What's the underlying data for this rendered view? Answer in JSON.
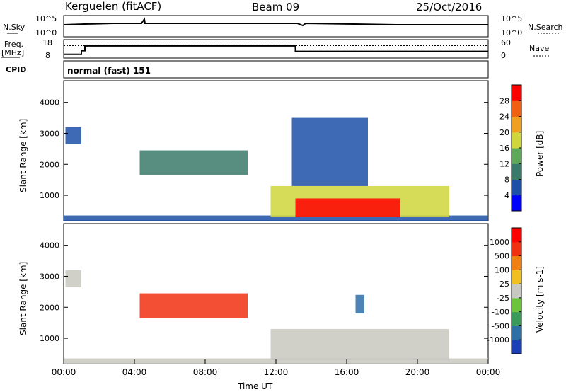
{
  "header": {
    "station": "Kerguelen (fitACF)",
    "beam": "Beam 09",
    "date": "25/Oct/2016"
  },
  "noise_panel": {
    "left_label": "N.Sky",
    "right_label": "N.Search",
    "left_ticks": [
      "10^5",
      "10^0"
    ],
    "right_ticks": [
      "10^5",
      "10^0"
    ]
  },
  "freq_panel": {
    "left_label_1": "Freq.",
    "left_label_2": "[MHz]",
    "right_label": "Nave",
    "left_ticks": [
      "18",
      "8"
    ],
    "right_ticks": [
      "60",
      "0"
    ],
    "freq_series": [
      {
        "t": 0.0,
        "mhz": 10.0
      },
      {
        "t": 1.0,
        "mhz": 10.0
      },
      {
        "t": 1.0,
        "mhz": 12.0
      },
      {
        "t": 1.2,
        "mhz": 12.0
      },
      {
        "t": 1.2,
        "mhz": 14.6
      },
      {
        "t": 13.1,
        "mhz": 14.6
      },
      {
        "t": 13.1,
        "mhz": 11.6
      },
      {
        "t": 24.0,
        "mhz": 11.6
      }
    ],
    "nave_level": 0.68
  },
  "cpid_panel": {
    "label": "CPID",
    "mode": "normal (fast) 151"
  },
  "chart_data": [
    {
      "type": "heatmap",
      "name": "power",
      "ylabel": "Slant Range [km]",
      "xlabel": "Time UT",
      "xlim": [
        0,
        24
      ],
      "ylim": [
        180,
        4700
      ],
      "yticks": [
        "1000",
        "2000",
        "3000",
        "4000"
      ],
      "colorbar": {
        "label": "Power [dB]",
        "ticks": [
          "4",
          "8",
          "12",
          "16",
          "20",
          "24",
          "28"
        ],
        "colors": [
          "#0000ff",
          "#1c4fa8",
          "#3a7a6a",
          "#5fa85a",
          "#cfd63a",
          "#f0a020",
          "#f06010",
          "#ff0000"
        ]
      },
      "regions": [
        {
          "t0": 0.1,
          "t1": 1.0,
          "r0": 2650,
          "r1": 3200,
          "level": 1
        },
        {
          "t0": 4.3,
          "t1": 10.4,
          "r0": 1650,
          "r1": 2450,
          "level": 2
        },
        {
          "t0": 0.0,
          "t1": 24.0,
          "r0": 180,
          "r1": 350,
          "level": 1
        },
        {
          "t0": 11.7,
          "t1": 21.8,
          "r0": 300,
          "r1": 1300,
          "level": 4
        },
        {
          "t0": 13.1,
          "t1": 19.0,
          "r0": 300,
          "r1": 900,
          "level": 7
        },
        {
          "t0": 12.9,
          "t1": 17.2,
          "r0": 1300,
          "r1": 3500,
          "level": 1
        }
      ]
    },
    {
      "type": "heatmap",
      "name": "velocity",
      "ylabel": "Slant Range [km]",
      "xlabel": "Time UT",
      "xlim": [
        0,
        24
      ],
      "ylim": [
        180,
        4700
      ],
      "yticks": [
        "1000",
        "2000",
        "3000",
        "4000"
      ],
      "xticks": [
        "00:00",
        "04:00",
        "08:00",
        "12:00",
        "16:00",
        "20:00",
        "00:00"
      ],
      "colorbar": {
        "label": "Velocity [m s-1]",
        "ticks": [
          "1000",
          "500",
          "100",
          "25",
          "-25",
          "-100",
          "-500",
          "-1000"
        ],
        "colors": [
          "#1a3fb8",
          "#2f6fa8",
          "#3a9a5a",
          "#6cc43a",
          "#c8c8c0",
          "#f0c020",
          "#f08010",
          "#f03010",
          "#ff0000"
        ]
      },
      "regions": [
        {
          "t0": 0.1,
          "t1": 1.0,
          "r0": 2650,
          "r1": 3200,
          "level": 4
        },
        {
          "t0": 4.3,
          "t1": 10.4,
          "r0": 1650,
          "r1": 2450,
          "level": 7
        },
        {
          "t0": 0.0,
          "t1": 24.0,
          "r0": 180,
          "r1": 350,
          "level": 4
        },
        {
          "t0": 11.7,
          "t1": 21.8,
          "r0": 300,
          "r1": 1300,
          "level": 4
        },
        {
          "t0": 16.5,
          "t1": 17.0,
          "r0": 1800,
          "r1": 2400,
          "level": 1
        }
      ]
    }
  ]
}
